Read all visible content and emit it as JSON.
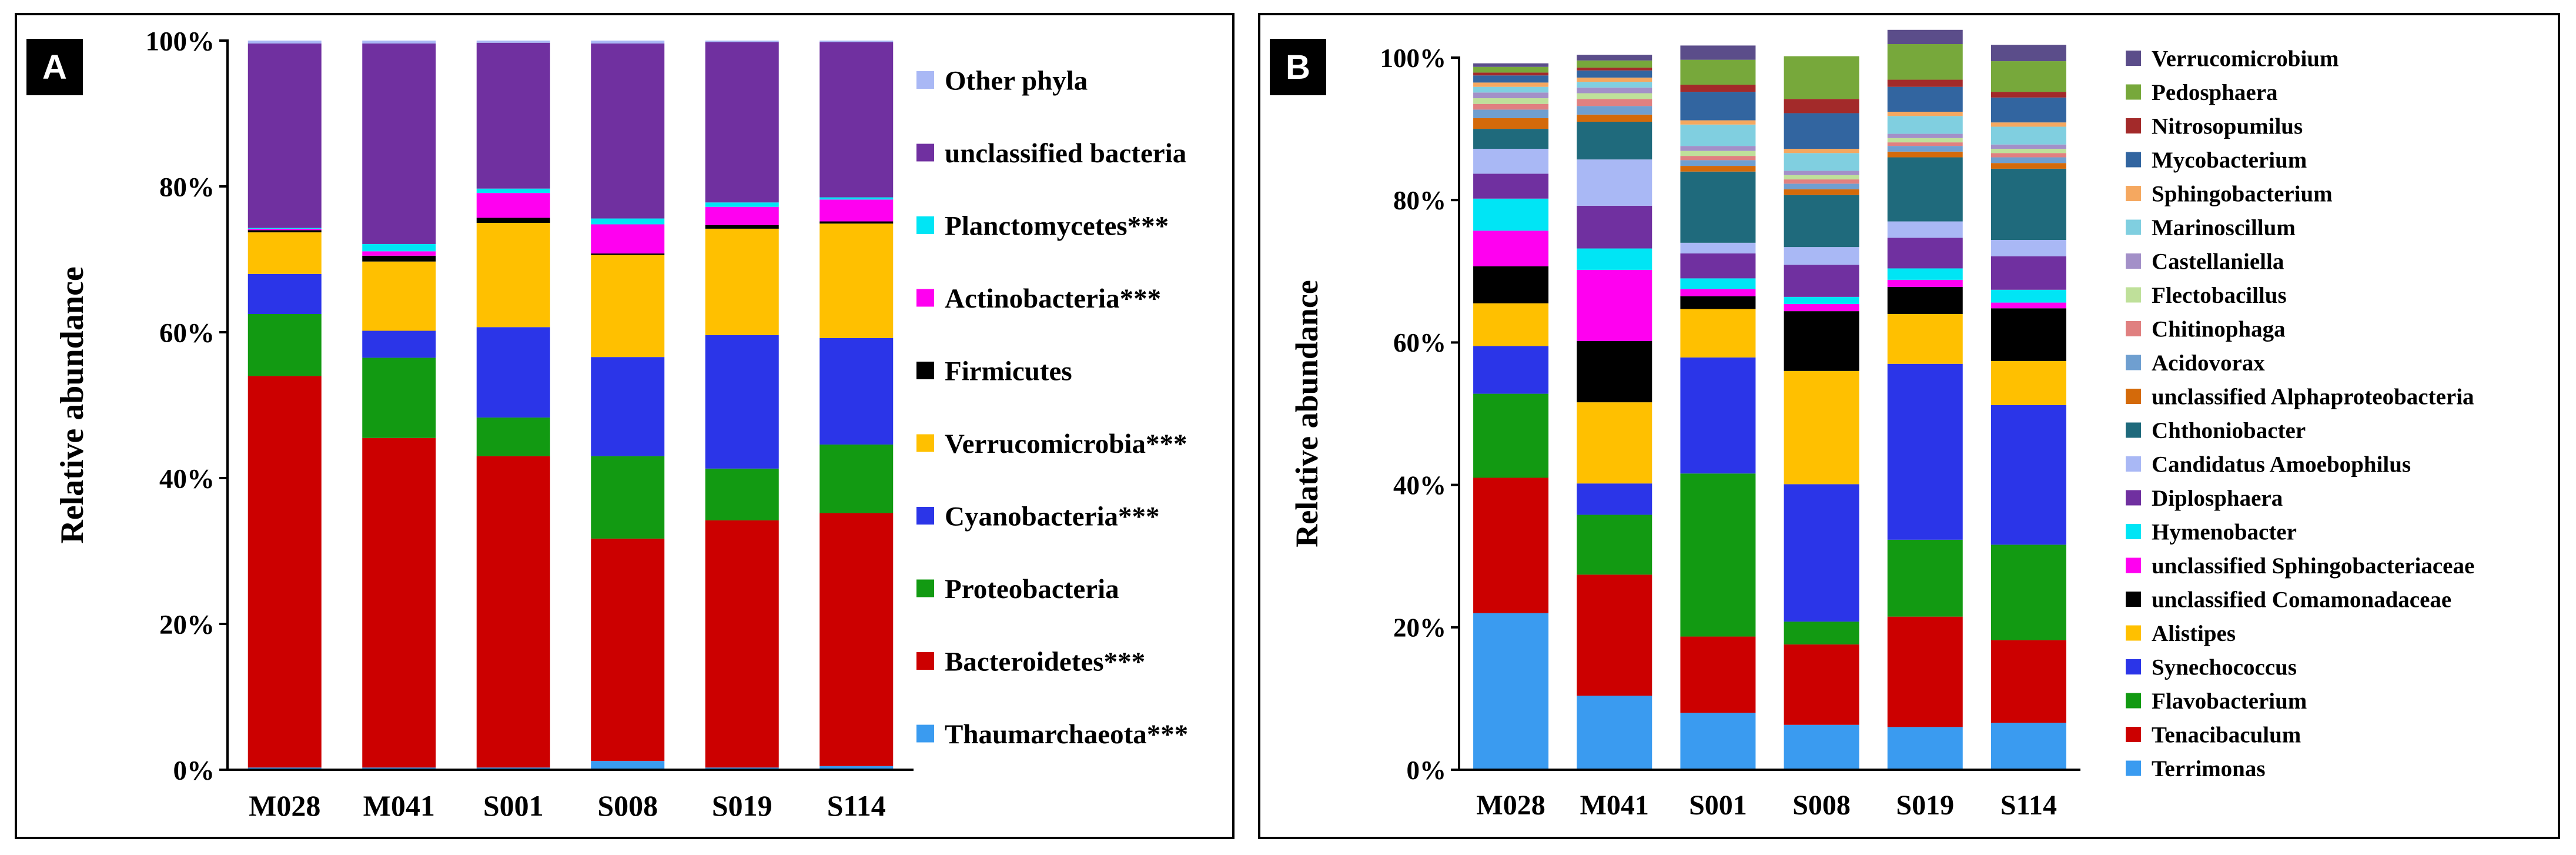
{
  "chart_data": [
    {
      "panel": "A",
      "type": "bar",
      "stacked": true,
      "normalized": true,
      "title": "",
      "xlabel": "",
      "ylabel": "Relative abundance",
      "ylim": [
        0,
        100
      ],
      "yticks": [
        "0%",
        "20%",
        "40%",
        "60%",
        "80%",
        "100%"
      ],
      "categories": [
        "M028",
        "M041",
        "S001",
        "S008",
        "S019",
        "S114"
      ],
      "legend_position": "right",
      "series": [
        {
          "name": "Thaumarchaeota***",
          "color": "#3a9bf0",
          "values": [
            0.3,
            0.3,
            0.3,
            1.2,
            0.3,
            0.5
          ]
        },
        {
          "name": "Bacteroidetes***",
          "color": "#cc0000",
          "values": [
            53.7,
            45.2,
            42.7,
            30.5,
            33.9,
            34.7
          ]
        },
        {
          "name": "Proteobacteria",
          "color": "#129a12",
          "values": [
            8.5,
            11.0,
            5.3,
            11.3,
            7.1,
            9.4
          ]
        },
        {
          "name": "Cyanobacteria***",
          "color": "#2b35e8",
          "values": [
            5.5,
            3.7,
            12.4,
            13.6,
            18.3,
            14.6
          ]
        },
        {
          "name": "Verrucomicrobia***",
          "color": "#ffc000",
          "values": [
            5.7,
            9.5,
            14.3,
            14.0,
            14.6,
            15.7
          ]
        },
        {
          "name": "Firmicutes",
          "color": "#000000",
          "values": [
            0.3,
            0.8,
            0.7,
            0.2,
            0.5,
            0.3
          ]
        },
        {
          "name": "Actinobacteria***",
          "color": "#ff00f0",
          "values": [
            0.2,
            0.6,
            3.4,
            4.0,
            2.5,
            3.0
          ]
        },
        {
          "name": "Planctomycetes***",
          "color": "#00e5f5",
          "values": [
            0.1,
            1.0,
            0.6,
            0.8,
            0.6,
            0.3
          ]
        },
        {
          "name": "unclassified bacteria",
          "color": "#7030a0",
          "values": [
            25.3,
            27.5,
            20.0,
            24.0,
            22.0,
            21.3
          ]
        },
        {
          "name": "Other phyla",
          "color": "#a9b8f5",
          "values": [
            0.4,
            0.4,
            0.3,
            0.4,
            0.2,
            0.2
          ]
        }
      ]
    },
    {
      "panel": "B",
      "type": "bar",
      "stacked": true,
      "normalized": true,
      "title": "",
      "xlabel": "",
      "ylabel": "Relative abundance",
      "ylim": [
        0,
        100
      ],
      "yticks": [
        "0%",
        "20%",
        "40%",
        "60%",
        "80%",
        "100%"
      ],
      "categories": [
        "M028",
        "M041",
        "S001",
        "S008",
        "S019",
        "S114"
      ],
      "legend_position": "right",
      "series": [
        {
          "name": "Terrimonas",
          "color": "#3a9bf0",
          "values": [
            22.0,
            10.4,
            8.0,
            6.3,
            6.0,
            6.6
          ]
        },
        {
          "name": "Tenacibaculum",
          "color": "#cc0000",
          "values": [
            19.0,
            17.0,
            10.7,
            11.3,
            15.5,
            11.6
          ]
        },
        {
          "name": "Flavobacterium",
          "color": "#129a12",
          "values": [
            11.8,
            8.4,
            22.9,
            3.2,
            10.8,
            13.4
          ]
        },
        {
          "name": "Synechococcus",
          "color": "#2b35e8",
          "values": [
            6.7,
            4.4,
            16.3,
            19.3,
            24.7,
            19.6
          ]
        },
        {
          "name": "Alistipes",
          "color": "#ffc000",
          "values": [
            6.0,
            11.4,
            6.8,
            15.9,
            7.0,
            6.2
          ]
        },
        {
          "name": "unclassified Comamonadaceae",
          "color": "#000000",
          "values": [
            5.2,
            8.6,
            1.8,
            8.4,
            3.8,
            7.4
          ]
        },
        {
          "name": "unclassified Sphingobacteriaceae",
          "color": "#ff00f0",
          "values": [
            5.0,
            10.0,
            1.0,
            1.0,
            1.0,
            0.8
          ]
        },
        {
          "name": "Hymenobacter",
          "color": "#00e5f5",
          "values": [
            4.5,
            3.0,
            1.5,
            1.0,
            1.6,
            1.8
          ]
        },
        {
          "name": "Diplosphaera",
          "color": "#7030a0",
          "values": [
            3.5,
            6.0,
            3.5,
            4.5,
            4.3,
            4.7
          ]
        },
        {
          "name": "Candidatus Amoebophilus",
          "color": "#a9b8f5",
          "values": [
            3.5,
            6.5,
            1.5,
            2.5,
            2.3,
            2.3
          ]
        },
        {
          "name": "Chthoniobacter",
          "color": "#1f6a7c",
          "values": [
            2.8,
            5.3,
            10.0,
            7.3,
            9.0,
            10.0
          ]
        },
        {
          "name": "unclassified Alphaproteobacteria",
          "color": "#d46a0a",
          "values": [
            1.5,
            1.0,
            0.8,
            0.8,
            0.8,
            0.8
          ]
        },
        {
          "name": "Acidovorax",
          "color": "#6f9fd0",
          "values": [
            1.2,
            1.2,
            0.8,
            0.8,
            0.8,
            0.8
          ]
        },
        {
          "name": "Chitinophaga",
          "color": "#e08080",
          "values": [
            0.8,
            1.0,
            0.6,
            0.6,
            0.5,
            0.6
          ]
        },
        {
          "name": "Flectobacillus",
          "color": "#bfe09a",
          "values": [
            0.8,
            0.8,
            0.7,
            0.6,
            0.6,
            0.6
          ]
        },
        {
          "name": "Castellaniella",
          "color": "#a390c8",
          "values": [
            0.8,
            0.8,
            0.7,
            0.6,
            0.6,
            0.6
          ]
        },
        {
          "name": "Marinoscillum",
          "color": "#80cfe0",
          "values": [
            0.8,
            0.8,
            3.0,
            2.5,
            2.5,
            2.5
          ]
        },
        {
          "name": "Sphingobacterium",
          "color": "#f5a860",
          "values": [
            0.6,
            0.6,
            0.6,
            0.6,
            0.6,
            0.6
          ]
        },
        {
          "name": "Mycobacterium",
          "color": "#3265a0",
          "values": [
            1.0,
            1.0,
            4.0,
            5.0,
            3.5,
            3.5
          ]
        },
        {
          "name": "Nitrosopumilus",
          "color": "#a32a2a",
          "values": [
            0.4,
            0.4,
            1.0,
            2.0,
            1.0,
            0.8
          ]
        },
        {
          "name": "Pedosphaera",
          "color": "#77a83b",
          "values": [
            0.8,
            1.0,
            3.5,
            6.0,
            5.0,
            4.3
          ]
        },
        {
          "name": "Verrucomicrobium",
          "color": "#5b4d8a",
          "values": [
            0.5,
            0.8,
            2.0,
            0.0,
            2.0,
            2.3
          ]
        }
      ]
    }
  ],
  "panel_labels": {
    "a": "A",
    "b": "B"
  },
  "colors": {
    "axis": "#000000",
    "background": "#ffffff"
  }
}
